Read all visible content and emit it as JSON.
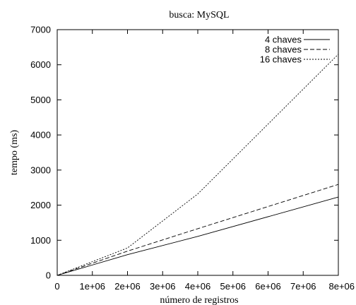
{
  "chart_data": {
    "type": "line",
    "title": "busca: MySQL",
    "xlabel": "número de registros",
    "ylabel": "tempo (ms)",
    "xlim": [
      0,
      8000000
    ],
    "ylim": [
      0,
      7000
    ],
    "x_ticks": [
      0,
      1000000,
      2000000,
      3000000,
      4000000,
      5000000,
      6000000,
      7000000,
      8000000
    ],
    "x_tick_labels": [
      "0",
      "1e+06",
      "2e+06",
      "3e+06",
      "4e+06",
      "5e+06",
      "6e+06",
      "7e+06",
      "8e+06"
    ],
    "y_ticks": [
      0,
      1000,
      2000,
      3000,
      4000,
      5000,
      6000,
      7000
    ],
    "y_tick_labels": [
      "0",
      "1000",
      "2000",
      "3000",
      "4000",
      "5000",
      "6000",
      "7000"
    ],
    "grid": false,
    "legend_position": "top-right",
    "series": [
      {
        "name": "4 chaves",
        "style": "solid",
        "x": [
          0,
          2000000,
          4000000,
          8000000
        ],
        "values": [
          0,
          590,
          1110,
          2230
        ]
      },
      {
        "name": "8 chaves",
        "style": "dashed",
        "x": [
          0,
          2000000,
          4000000,
          8000000
        ],
        "values": [
          0,
          690,
          1330,
          2590
        ]
      },
      {
        "name": "16 chaves",
        "style": "dotted",
        "x": [
          0,
          2000000,
          4000000,
          8000000
        ],
        "values": [
          0,
          780,
          2320,
          6300
        ]
      }
    ]
  }
}
